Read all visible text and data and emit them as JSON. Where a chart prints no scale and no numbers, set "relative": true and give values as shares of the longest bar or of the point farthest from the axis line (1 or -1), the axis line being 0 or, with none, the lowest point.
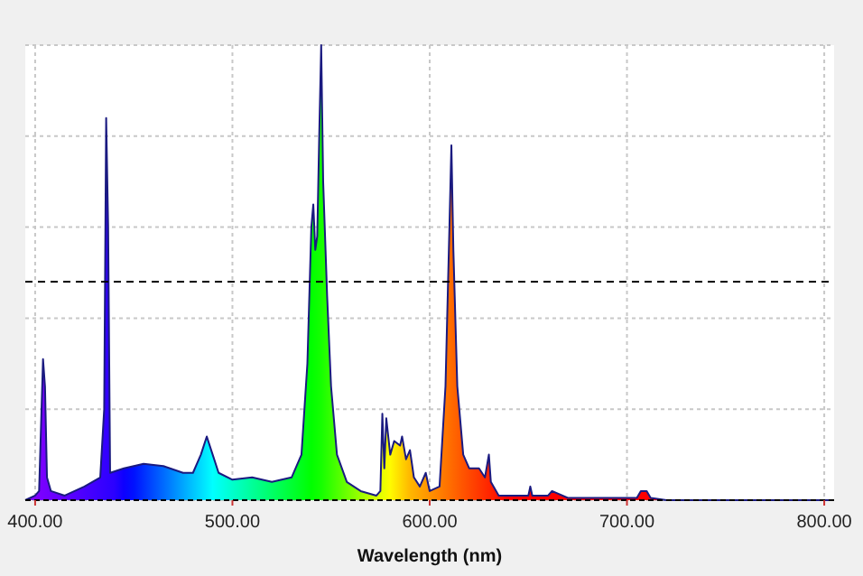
{
  "chart_data": {
    "type": "area",
    "xlabel": "Wavelength (nm)",
    "relative": true,
    "grid": true,
    "xlim": [
      395,
      805
    ],
    "xticks": [
      {
        "value": 400,
        "label": "400.00"
      },
      {
        "value": 500,
        "label": "500.00"
      },
      {
        "value": 600,
        "label": "600.00"
      },
      {
        "value": 700,
        "label": "700.00"
      },
      {
        "value": 800,
        "label": "800.00"
      }
    ],
    "ref_lines": [
      {
        "axis": "y",
        "value": 0.48,
        "color": "#000000",
        "line_style": "dashed"
      }
    ],
    "series": [
      {
        "color": "#1a1a80",
        "x": [
          395,
          400,
          402,
          404,
          405,
          406,
          408,
          415,
          425,
          433,
          435,
          436,
          437,
          438,
          445,
          455,
          465,
          475,
          480,
          484,
          487,
          490,
          493,
          500,
          510,
          520,
          530,
          535,
          538,
          540,
          541,
          542,
          543,
          544,
          545,
          546,
          548,
          550,
          553,
          558,
          565,
          573,
          575,
          576,
          577,
          578,
          580,
          582,
          585,
          586,
          588,
          590,
          592,
          595,
          598,
          600,
          605,
          608,
          610,
          611,
          612,
          614,
          617,
          620,
          625,
          628,
          630,
          631,
          635,
          650,
          651,
          652,
          660,
          662,
          670,
          690,
          705,
          707,
          710,
          712,
          720,
          805
        ],
        "values": [
          0,
          0.01,
          0.02,
          0.31,
          0.25,
          0.05,
          0.02,
          0.01,
          0.03,
          0.05,
          0.2,
          0.84,
          0.6,
          0.06,
          0.07,
          0.08,
          0.075,
          0.06,
          0.06,
          0.1,
          0.14,
          0.1,
          0.06,
          0.045,
          0.05,
          0.04,
          0.05,
          0.1,
          0.3,
          0.6,
          0.65,
          0.55,
          0.58,
          0.8,
          1.0,
          0.7,
          0.45,
          0.25,
          0.1,
          0.04,
          0.02,
          0.01,
          0.02,
          0.19,
          0.07,
          0.18,
          0.1,
          0.13,
          0.12,
          0.14,
          0.09,
          0.11,
          0.05,
          0.03,
          0.06,
          0.02,
          0.03,
          0.25,
          0.6,
          0.78,
          0.55,
          0.25,
          0.1,
          0.07,
          0.07,
          0.05,
          0.1,
          0.04,
          0.01,
          0.01,
          0.03,
          0.01,
          0.01,
          0.02,
          0.005,
          0.005,
          0.005,
          0.02,
          0.02,
          0.005,
          0,
          0
        ]
      }
    ]
  }
}
